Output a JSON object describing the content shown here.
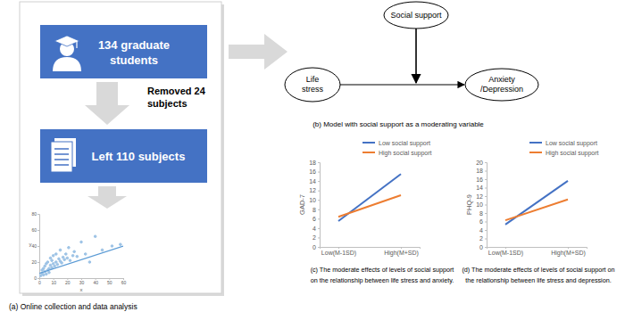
{
  "flow": {
    "start": [
      "134 graduate",
      "students"
    ],
    "removed": [
      "Removed 24",
      "subjects"
    ],
    "left": "Left 110 subjects",
    "caption": "(a) Online collection and data analysis"
  },
  "model": {
    "moderator": "Social support",
    "predictor": [
      "Life",
      "stress"
    ],
    "outcome": [
      "Anxiety",
      "/Depression"
    ],
    "caption": "(b) Model with social support as a moderating variable"
  },
  "chart_data": [
    {
      "type": "scatter",
      "xlabel": "x",
      "ylabel": "y",
      "xlim": [
        0,
        60
      ],
      "ylim": [
        0,
        80
      ],
      "xticks": [
        0,
        10,
        20,
        30,
        40,
        50,
        60
      ],
      "yticks": [
        0,
        20,
        40,
        60,
        80
      ],
      "series": [
        {
          "type": "scatter",
          "color": "#9dc3e6",
          "marker": "circle",
          "x": [
            1,
            2,
            2,
            3,
            3,
            4,
            4,
            5,
            5,
            6,
            6,
            7,
            7,
            8,
            8,
            9,
            9,
            10,
            10,
            11,
            12,
            12,
            13,
            14,
            15,
            15,
            16,
            17,
            18,
            19,
            20,
            21,
            22,
            24,
            25,
            27,
            30,
            33,
            36,
            40,
            45,
            52,
            58
          ],
          "values": [
            3,
            6,
            10,
            4,
            12,
            8,
            15,
            5,
            18,
            10,
            20,
            12,
            7,
            16,
            25,
            13,
            22,
            18,
            28,
            15,
            20,
            30,
            17,
            24,
            21,
            35,
            19,
            26,
            23,
            30,
            25,
            38,
            22,
            28,
            33,
            27,
            45,
            30,
            20,
            52,
            35,
            40,
            42
          ]
        },
        {
          "type": "line",
          "color": "#5b9bd5",
          "line_style": "solid",
          "x": [
            0,
            60
          ],
          "values": [
            6,
            40
          ]
        }
      ]
    },
    {
      "type": "line",
      "title": [
        "(c) The moderate effects of levels of social support",
        "on the relationship between life stress and anxiety."
      ],
      "ylabel": "GAD-7",
      "categories": [
        "Low(M-1SD)",
        "High(M+SD)"
      ],
      "ylim": [
        0,
        18
      ],
      "yticks": [
        0,
        2,
        4,
        6,
        8,
        10,
        12,
        14,
        16,
        18
      ],
      "legend": "top-right",
      "series": [
        {
          "name": "Low social support",
          "color": "#4472c4",
          "values": [
            5.5,
            15.5
          ]
        },
        {
          "name": "High social support",
          "color": "#ed7d31",
          "values": [
            6.4,
            11.0
          ]
        }
      ]
    },
    {
      "type": "line",
      "title": [
        "(d) The moderate effects of levels of social support on",
        "the relationship between life stress and depression."
      ],
      "ylabel": "PHQ-9",
      "categories": [
        "Low(M-1SD)",
        "High(M+SD)"
      ],
      "ylim": [
        0,
        20
      ],
      "yticks": [
        0,
        2,
        4,
        6,
        8,
        10,
        12,
        14,
        16,
        18,
        20
      ],
      "legend": "top-right",
      "series": [
        {
          "name": "Low social support",
          "color": "#4472c4",
          "values": [
            5.3,
            15.6
          ]
        },
        {
          "name": "High social support",
          "color": "#ed7d31",
          "values": [
            6.3,
            11.2
          ]
        }
      ]
    }
  ]
}
